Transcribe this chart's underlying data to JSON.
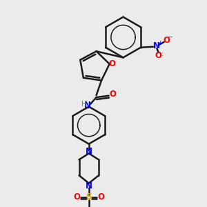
{
  "background_color": "#ebebeb",
  "bond_color": "#1a1a1a",
  "oxygen_color": "#ff0000",
  "nitrogen_color": "#0000ff",
  "sulfur_color": "#d4aa00",
  "teal_color": "#4a8f8f",
  "figsize": [
    3.0,
    3.0
  ],
  "dpi": 100,
  "xlim": [
    0.0,
    1.0
  ],
  "ylim": [
    0.0,
    1.0
  ]
}
